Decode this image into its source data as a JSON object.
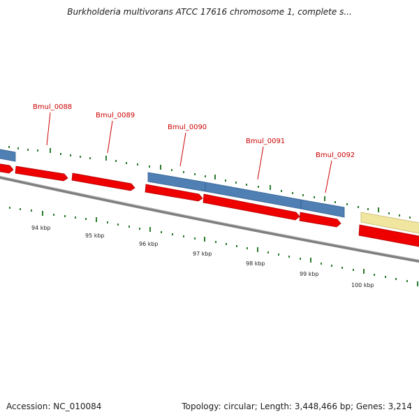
{
  "title": "Burkholderia multivorans ATCC 17616 chromosome 1, complete s...",
  "footer": {
    "accession": "Accession: NC_010084",
    "stats": "Topology: circular; Length: 3,448,466 bp; Genes: 3,214"
  },
  "gene_labels": [
    "Bmul_0088",
    "Bmul_0089",
    "Bmul_0090",
    "Bmul_0091",
    "Bmul_0092"
  ],
  "kbp_labels": [
    "94 kbp",
    "95 kbp",
    "96 kbp",
    "97 kbp",
    "98 kbp",
    "99 kbp",
    "100 kbp"
  ],
  "colors": {
    "gene_label": "#cc0000",
    "cds_forward": "#ee0000",
    "gene_blue": "#4f7fb3",
    "gene_yellow": "#f1e6a0",
    "backbone": "#8a8a8a",
    "ticks": "#2a7a2a"
  }
}
